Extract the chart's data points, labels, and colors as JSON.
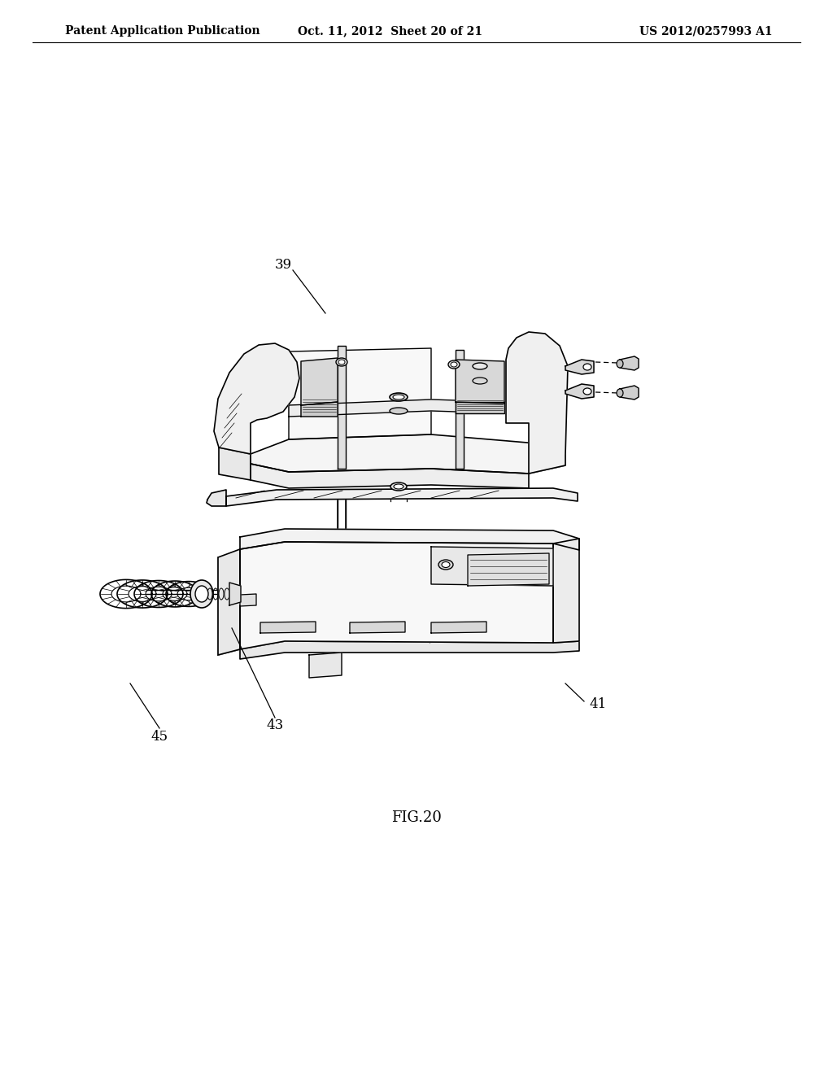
{
  "bg_color": "#ffffff",
  "header_left": "Patent Application Publication",
  "header_center": "Oct. 11, 2012  Sheet 20 of 21",
  "header_right": "US 2012/0257993 A1",
  "caption": "FIG.20",
  "fig_width": 10.24,
  "fig_height": 13.2,
  "dpi": 100
}
